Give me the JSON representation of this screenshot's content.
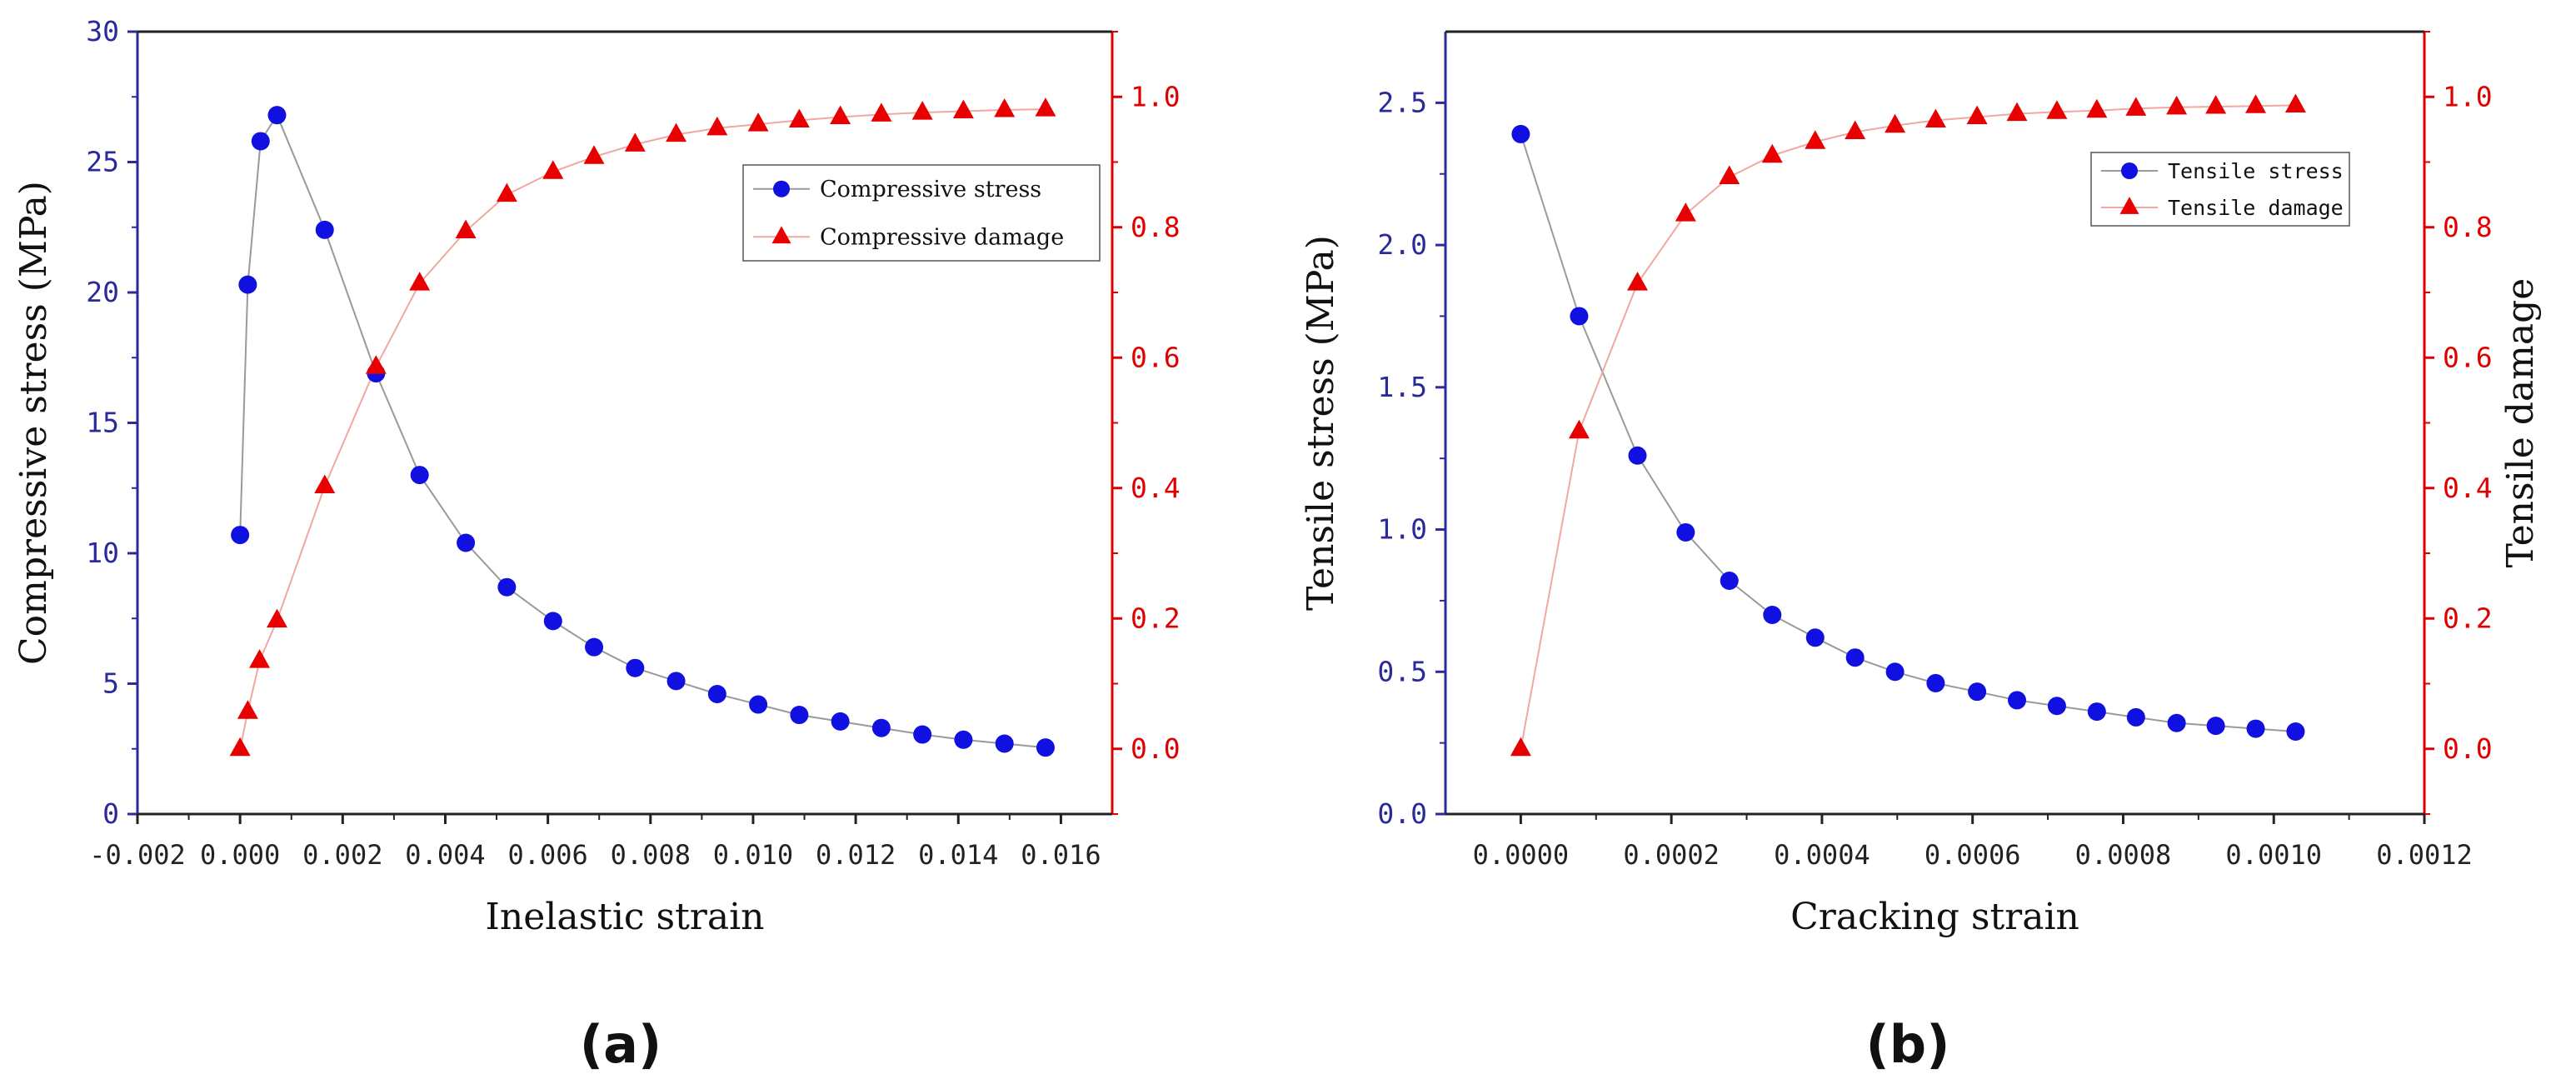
{
  "chart_data": [
    {
      "type": "line",
      "panel_label": "(a)",
      "xlabel": "Inelastic strain",
      "ylabel": "Compressive stress (MPa)",
      "y2label": "",
      "xlim": [
        -0.002,
        0.017
      ],
      "ylim": [
        0,
        30
      ],
      "y2lim": [
        -0.1,
        1.1
      ],
      "x_ticks": [
        "-0.002",
        "0.000",
        "0.002",
        "0.004",
        "0.006",
        "0.008",
        "0.010",
        "0.012",
        "0.014",
        "0.016"
      ],
      "x_tick_values": [
        -0.002,
        0,
        0.002,
        0.004,
        0.006,
        0.008,
        0.01,
        0.012,
        0.014,
        0.016
      ],
      "y_ticks": [
        "0",
        "5",
        "10",
        "15",
        "20",
        "25",
        "30"
      ],
      "y_tick_values": [
        0,
        5,
        10,
        15,
        20,
        25,
        30
      ],
      "y2_ticks": [
        "0.0",
        "0.2",
        "0.4",
        "0.6",
        "0.8",
        "1.0"
      ],
      "y2_tick_values": [
        0,
        0.2,
        0.4,
        0.6,
        0.8,
        1.0
      ],
      "legend_position": "upper-right",
      "series": [
        {
          "name": "Compressive stress",
          "axis": "left",
          "marker": "circle",
          "color": "#1010e0",
          "line_color": "#9a9a9a",
          "x": [
            0.0,
            0.00015,
            0.0004,
            0.00072,
            0.00165,
            0.00265,
            0.0035,
            0.0044,
            0.0052,
            0.0061,
            0.0069,
            0.0077,
            0.0085,
            0.0093,
            0.0101,
            0.0109,
            0.0117,
            0.0125,
            0.0133,
            0.0141,
            0.0149,
            0.0157
          ],
          "values": [
            10.7,
            20.3,
            25.8,
            26.8,
            22.4,
            16.9,
            13.0,
            10.4,
            8.7,
            7.4,
            6.4,
            5.6,
            5.1,
            4.6,
            4.2,
            3.8,
            3.55,
            3.3,
            3.05,
            2.85,
            2.7,
            2.55
          ]
        },
        {
          "name": "Compressive damage",
          "axis": "right",
          "marker": "triangle",
          "color": "#e80000",
          "line_color": "#f0a8a0",
          "x": [
            0.0,
            0.00015,
            0.00038,
            0.00072,
            0.00165,
            0.00265,
            0.0035,
            0.0044,
            0.0052,
            0.0061,
            0.0069,
            0.0077,
            0.0085,
            0.0093,
            0.0101,
            0.0109,
            0.0117,
            0.0125,
            0.0133,
            0.0141,
            0.0149,
            0.0157
          ],
          "values": [
            0.0,
            0.057,
            0.135,
            0.197,
            0.403,
            0.586,
            0.714,
            0.794,
            0.85,
            0.885,
            0.908,
            0.927,
            0.942,
            0.952,
            0.958,
            0.964,
            0.969,
            0.973,
            0.976,
            0.978,
            0.98,
            0.981
          ]
        }
      ]
    },
    {
      "type": "line",
      "panel_label": "(b)",
      "xlabel": "Cracking strain",
      "ylabel": "Tensile stress (MPa)",
      "y2label": "Tensile damage",
      "xlim": [
        -0.0001,
        0.0012
      ],
      "ylim": [
        0,
        2.75
      ],
      "y2lim": [
        -0.1,
        1.1
      ],
      "x_ticks": [
        "0.0000",
        "0.0002",
        "0.0004",
        "0.0006",
        "0.0008",
        "0.0010",
        "0.0012"
      ],
      "x_tick_values": [
        0,
        0.0002,
        0.0004,
        0.0006,
        0.0008,
        0.001,
        0.0012
      ],
      "y_ticks": [
        "0.0",
        "0.5",
        "1.0",
        "1.5",
        "2.0",
        "2.5"
      ],
      "y_tick_values": [
        0,
        0.5,
        1.0,
        1.5,
        2.0,
        2.5
      ],
      "y2_ticks": [
        "0.0",
        "0.2",
        "0.4",
        "0.6",
        "0.8",
        "1.0"
      ],
      "y2_tick_values": [
        0,
        0.2,
        0.4,
        0.6,
        0.8,
        1.0
      ],
      "legend_position": "upper-right",
      "series": [
        {
          "name": "Tensile stress",
          "axis": "left",
          "marker": "circle",
          "color": "#1010e0",
          "line_color": "#9a9a9a",
          "x": [
            0.0,
            7.75e-05,
            0.000155,
            0.000219,
            0.000277,
            0.000334,
            0.000391,
            0.000444,
            0.000497,
            0.000551,
            0.000606,
            0.000659,
            0.000712,
            0.000765,
            0.000817,
            0.000871,
            0.000923,
            0.000976,
            0.001029
          ],
          "values": [
            2.39,
            1.75,
            1.26,
            0.99,
            0.82,
            0.7,
            0.62,
            0.55,
            0.5,
            0.46,
            0.43,
            0.4,
            0.38,
            0.36,
            0.34,
            0.32,
            0.31,
            0.3,
            0.29
          ]
        },
        {
          "name": "Tensile damage",
          "axis": "right",
          "marker": "triangle",
          "color": "#e80000",
          "line_color": "#f0a8a0",
          "x": [
            0.0,
            7.75e-05,
            0.000155,
            0.000219,
            0.000277,
            0.000334,
            0.000391,
            0.000444,
            0.000497,
            0.000551,
            0.000606,
            0.000659,
            0.000712,
            0.000765,
            0.000817,
            0.000871,
            0.000923,
            0.000976,
            0.001029
          ],
          "values": [
            0.0,
            0.487,
            0.714,
            0.82,
            0.877,
            0.91,
            0.931,
            0.946,
            0.956,
            0.964,
            0.969,
            0.974,
            0.977,
            0.979,
            0.982,
            0.984,
            0.985,
            0.986,
            0.987
          ]
        }
      ]
    }
  ]
}
